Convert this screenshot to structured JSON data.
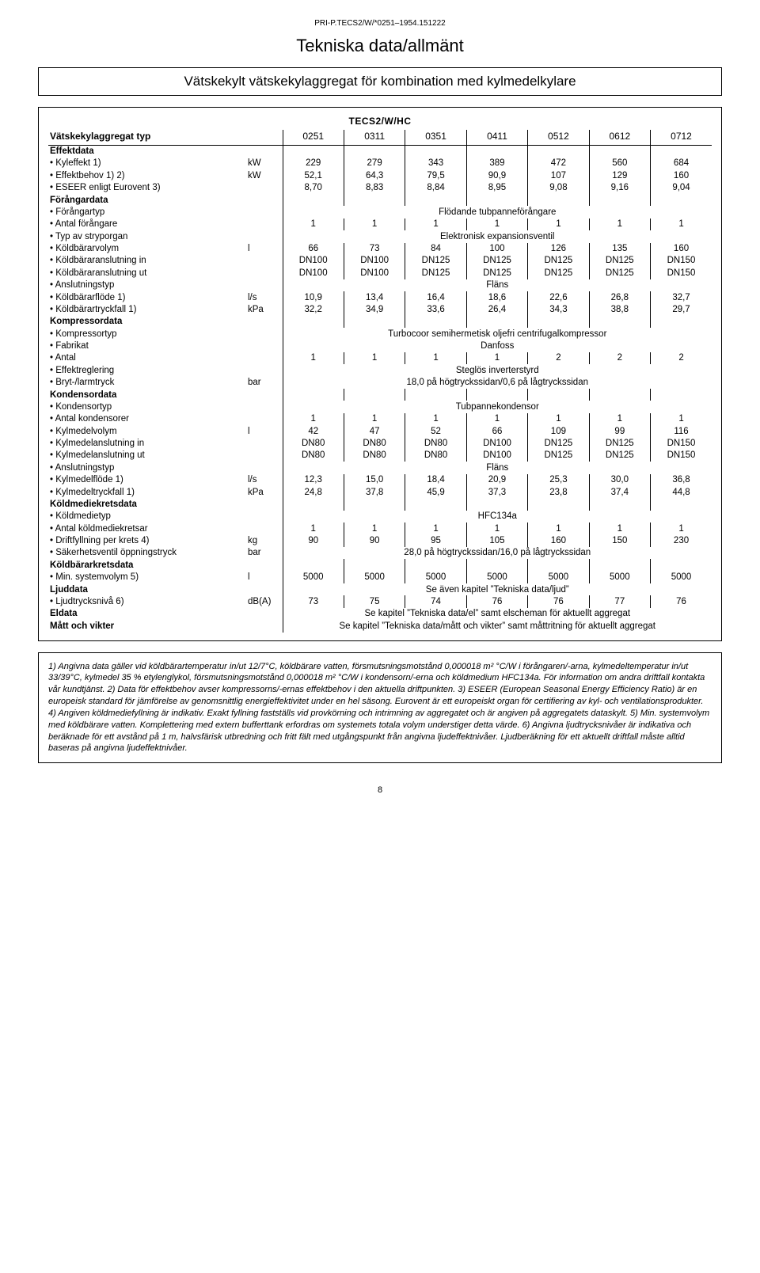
{
  "doc_id": "PRI-P.TECS2/W/*0251–1954.151222",
  "title": "Tekniska data/allmänt",
  "subtitle": "Vätskekylt vätskekylaggregat för kombination med kylmedelkylare",
  "brand_header": "TECS2/W/HC",
  "row_label_head": "Vätskekylaggregat typ",
  "models": [
    "0251",
    "0311",
    "0351",
    "0411",
    "0512",
    "0612",
    "0712"
  ],
  "sections": [
    {
      "section": "Effektdata",
      "rows": [
        {
          "label": "Kyleffekt 1)",
          "unit": "kW",
          "vals": [
            "229",
            "279",
            "343",
            "389",
            "472",
            "560",
            "684"
          ]
        },
        {
          "label": "Effektbehov 1) 2)",
          "unit": "kW",
          "vals": [
            "52,1",
            "64,3",
            "79,5",
            "90,9",
            "107",
            "129",
            "160"
          ]
        },
        {
          "label": "ESEER enligt Eurovent 3)",
          "unit": "",
          "vals": [
            "8,70",
            "8,83",
            "8,84",
            "8,95",
            "9,08",
            "9,16",
            "9,04"
          ]
        }
      ]
    },
    {
      "section": "Förångardata",
      "rows": [
        {
          "label": "Förångartyp",
          "unit": "",
          "merged": "Flödande tubpanneförångare"
        },
        {
          "label": "Antal förångare",
          "unit": "",
          "vals": [
            "1",
            "1",
            "1",
            "1",
            "1",
            "1",
            "1"
          ]
        },
        {
          "label": "Typ av stryporgan",
          "unit": "",
          "merged": "Elektronisk expansionsventil"
        },
        {
          "label": "Köldbärarvolym",
          "unit": "l",
          "vals": [
            "66",
            "73",
            "84",
            "100",
            "126",
            "135",
            "160"
          ]
        },
        {
          "label": "Köldbäraranslutning in",
          "unit": "",
          "vals": [
            "DN100",
            "DN100",
            "DN125",
            "DN125",
            "DN125",
            "DN125",
            "DN150"
          ]
        },
        {
          "label": "Köldbäraranslutning ut",
          "unit": "",
          "vals": [
            "DN100",
            "DN100",
            "DN125",
            "DN125",
            "DN125",
            "DN125",
            "DN150"
          ]
        },
        {
          "label": "Anslutningstyp",
          "unit": "",
          "merged": "Fläns"
        },
        {
          "label": "Köldbärarflöde 1)",
          "unit": "l/s",
          "vals": [
            "10,9",
            "13,4",
            "16,4",
            "18,6",
            "22,6",
            "26,8",
            "32,7"
          ]
        },
        {
          "label": "Köldbärartryckfall 1)",
          "unit": "kPa",
          "vals": [
            "32,2",
            "34,9",
            "33,6",
            "26,4",
            "34,3",
            "38,8",
            "29,7"
          ]
        }
      ]
    },
    {
      "section": "Kompressordata",
      "rows": [
        {
          "label": "Kompressortyp",
          "unit": "",
          "merged": "Turbocoor semihermetisk oljefri centrifugalkompressor"
        },
        {
          "label": "Fabrikat",
          "unit": "",
          "merged": "Danfoss"
        },
        {
          "label": "Antal",
          "unit": "",
          "vals": [
            "1",
            "1",
            "1",
            "1",
            "2",
            "2",
            "2"
          ]
        },
        {
          "label": "Effektreglering",
          "unit": "",
          "merged": "Steglös inverterstyrd"
        },
        {
          "label": "Bryt-/larmtryck",
          "unit": "bar",
          "merged": "18,0 på högtryckssidan/0,6 på lågtryckssidan"
        }
      ]
    },
    {
      "section": "Kondensordata",
      "rows": [
        {
          "label": "Kondensortyp",
          "unit": "",
          "merged": "Tubpannekondensor"
        },
        {
          "label": "Antal kondensorer",
          "unit": "",
          "vals": [
            "1",
            "1",
            "1",
            "1",
            "1",
            "1",
            "1"
          ]
        },
        {
          "label": "Kylmedelvolym",
          "unit": "l",
          "vals": [
            "42",
            "47",
            "52",
            "66",
            "109",
            "99",
            "116"
          ]
        },
        {
          "label": "Kylmedelanslutning in",
          "unit": "",
          "vals": [
            "DN80",
            "DN80",
            "DN80",
            "DN100",
            "DN125",
            "DN125",
            "DN150"
          ]
        },
        {
          "label": "Kylmedelanslutning ut",
          "unit": "",
          "vals": [
            "DN80",
            "DN80",
            "DN80",
            "DN100",
            "DN125",
            "DN125",
            "DN150"
          ]
        },
        {
          "label": "Anslutningstyp",
          "unit": "",
          "merged": "Fläns"
        },
        {
          "label": "Kylmedelflöde 1)",
          "unit": "l/s",
          "vals": [
            "12,3",
            "15,0",
            "18,4",
            "20,9",
            "25,3",
            "30,0",
            "36,8"
          ]
        },
        {
          "label": "Kylmedeltryckfall 1)",
          "unit": "kPa",
          "vals": [
            "24,8",
            "37,8",
            "45,9",
            "37,3",
            "23,8",
            "37,4",
            "44,8"
          ]
        }
      ]
    },
    {
      "section": "Köldmediekretsdata",
      "rows": [
        {
          "label": "Köldmedietyp",
          "unit": "",
          "merged": "HFC134a"
        },
        {
          "label": "Antal köldmediekretsar",
          "unit": "",
          "vals": [
            "1",
            "1",
            "1",
            "1",
            "1",
            "1",
            "1"
          ]
        },
        {
          "label": "Driftfyllning per krets 4)",
          "unit": "kg",
          "vals": [
            "90",
            "90",
            "95",
            "105",
            "160",
            "150",
            "230"
          ]
        },
        {
          "label": "Säkerhetsventil öppningstryck",
          "unit": "bar",
          "merged": "28,0 på högtryckssidan/16,0 på lågtryckssidan"
        }
      ]
    },
    {
      "section": "Köldbärarkretsdata",
      "rows": [
        {
          "label": "Min. systemvolym 5)",
          "unit": "l",
          "vals": [
            "5000",
            "5000",
            "5000",
            "5000",
            "5000",
            "5000",
            "5000"
          ]
        }
      ]
    },
    {
      "section": "Ljuddata",
      "section_merged": "Se även kapitel ”Tekniska data/ljud”",
      "rows": [
        {
          "label": "Ljudtrycksnivå 6)",
          "unit": "dB(A)",
          "vals": [
            "73",
            "75",
            "74",
            "76",
            "76",
            "77",
            "76"
          ]
        }
      ]
    },
    {
      "section": "Eldata",
      "section_merged": "Se kapitel ”Tekniska data/el” samt elscheman för aktuellt aggregat",
      "rows": []
    },
    {
      "section": "Mått och vikter",
      "section_merged": "Se kapitel ”Tekniska data/mått och vikter” samt måttritning för aktuellt aggregat",
      "rows": []
    }
  ],
  "footnotes": "1) Angivna data gäller vid köldbärartemperatur in/ut 12/7°C, köldbärare vatten, försmutsningsmotstånd 0,000018 m² °C/W i förångaren/-arna, kylmedeltemperatur in/ut 33/39°C, kylmedel 35 % etylenglykol, försmutsningsmotstånd 0,000018 m² °C/W i kondensorn/-erna och köldmedium HFC134a. För information om andra driftfall kontakta vår kundtjänst. 2) Data för effektbehov avser kompressorns/-ernas effektbehov i den aktuella driftpunkten. 3) ESEER (European Seasonal Energy Efficiency Ratio) är en europeisk standard för jämförelse av genomsnittlig energieffektivitet under en hel säsong. Eurovent är ett europeiskt organ för certifiering av kyl- och ventilationsprodukter. 4) Angiven köldmediefyllning är indikativ. Exakt fyllning fastställs vid provkörning och intrimning av aggregatet och är angiven på aggregatets dataskylt. 5) Min. systemvolym med köldbärare vatten. Komplettering med extern bufferttank erfordras om systemets totala volym understiger detta värde. 6) Angivna ljudtrycksnivåer är indikativa och beräknade för ett avstånd på 1 m, halvsfärisk utbredning och fritt fält med utgångspunkt från angivna ljudeffektnivåer. Ljudberäkning för ett aktuellt driftfall måste alltid baseras på angivna ljudeffektnivåer.",
  "page_number": "8"
}
